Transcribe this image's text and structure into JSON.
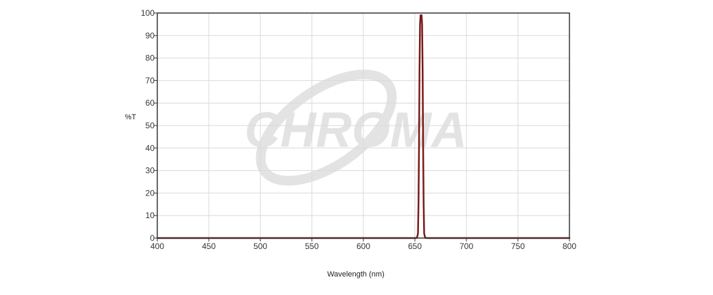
{
  "watermark": {
    "text": "CHROMA"
  },
  "colors": {
    "series": "#7a1a1a",
    "grid": "#d9d9d9",
    "frame": "#333333",
    "watermark": "#e3e3e3"
  },
  "chart_data": {
    "type": "line",
    "xlabel": "Wavelength (nm)",
    "ylabel": "%T",
    "xlim": [
      400,
      800
    ],
    "ylim": [
      0,
      100
    ],
    "xticks": [
      400,
      450,
      500,
      550,
      600,
      650,
      700,
      750,
      800
    ],
    "yticks": [
      0,
      10,
      20,
      30,
      40,
      50,
      60,
      70,
      80,
      90,
      100
    ],
    "grid": true,
    "legend": "none",
    "series": [
      {
        "points": [
          [
            400,
            0
          ],
          [
            600,
            0
          ],
          [
            650,
            0
          ],
          [
            652,
            0.1
          ],
          [
            653,
            2
          ],
          [
            653.5,
            15
          ],
          [
            654,
            40
          ],
          [
            654.5,
            75
          ],
          [
            655,
            95
          ],
          [
            655.5,
            99
          ],
          [
            656,
            99
          ],
          [
            656.5,
            99
          ],
          [
            657,
            95
          ],
          [
            657.5,
            75
          ],
          [
            658,
            40
          ],
          [
            658.5,
            15
          ],
          [
            659,
            2
          ],
          [
            660,
            0.1
          ],
          [
            662,
            0
          ],
          [
            700,
            0
          ],
          [
            800,
            0
          ]
        ]
      }
    ]
  }
}
